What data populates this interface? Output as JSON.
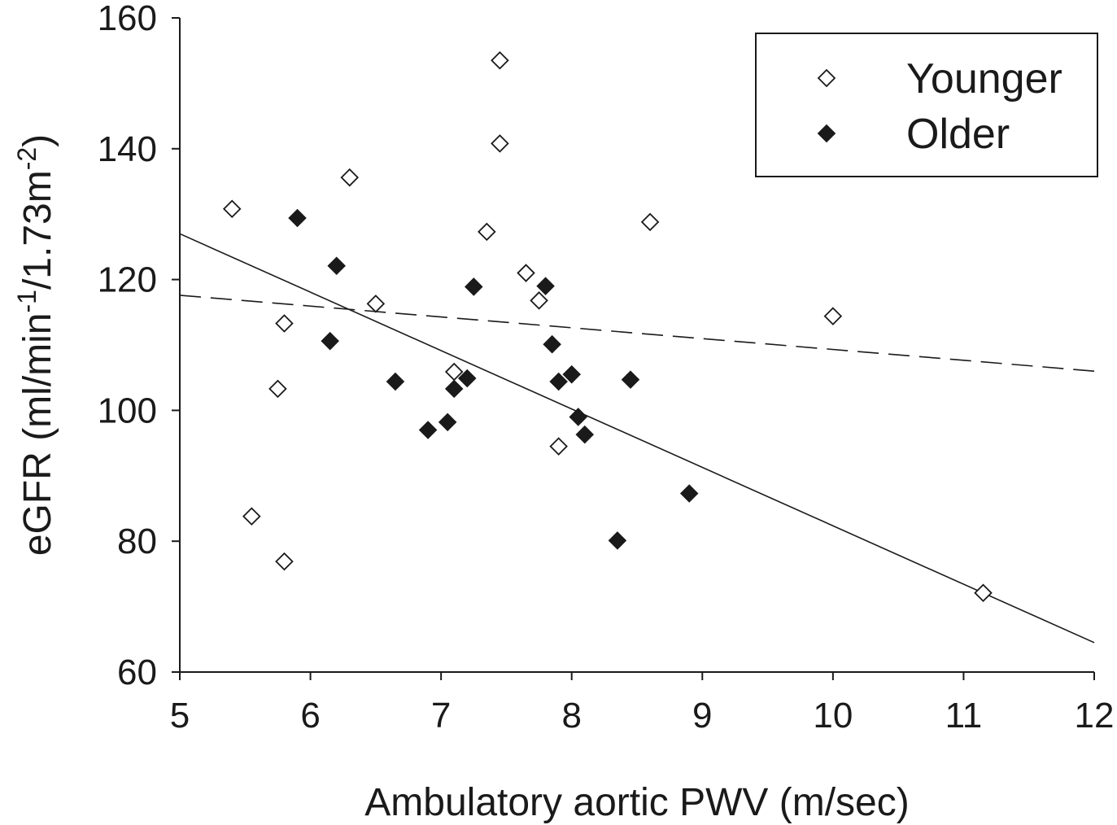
{
  "chart_data": {
    "type": "scatter",
    "title": "",
    "xlabel": "Ambulatory aortic PWV (m/sec)",
    "ylabel": {
      "prefix": "eGFR (ml/min",
      "sup1": "-1",
      "middle": "/1.73m",
      "sup2": "-2",
      "suffix": ")"
    },
    "xlim": [
      5,
      12
    ],
    "ylim": [
      60,
      160
    ],
    "xticks": [
      "5",
      "6",
      "7",
      "8",
      "9",
      "10",
      "11",
      "12"
    ],
    "yticks": [
      "60",
      "80",
      "100",
      "120",
      "140",
      "160"
    ],
    "grid": false,
    "legend_position": "top-right",
    "series": [
      {
        "name": "Younger",
        "marker": "open-diamond",
        "color": "#1a1a1a",
        "points": [
          {
            "x": 5.4,
            "y": 130.8
          },
          {
            "x": 5.55,
            "y": 83.8
          },
          {
            "x": 5.75,
            "y": 103.3
          },
          {
            "x": 5.8,
            "y": 113.3
          },
          {
            "x": 5.8,
            "y": 76.9
          },
          {
            "x": 6.3,
            "y": 135.6
          },
          {
            "x": 6.5,
            "y": 116.3
          },
          {
            "x": 7.1,
            "y": 105.9
          },
          {
            "x": 7.35,
            "y": 127.3
          },
          {
            "x": 7.45,
            "y": 153.5
          },
          {
            "x": 7.45,
            "y": 140.8
          },
          {
            "x": 7.65,
            "y": 121.0
          },
          {
            "x": 7.75,
            "y": 116.8
          },
          {
            "x": 7.9,
            "y": 94.5
          },
          {
            "x": 8.6,
            "y": 128.8
          },
          {
            "x": 10.0,
            "y": 114.4
          },
          {
            "x": 11.15,
            "y": 72.1
          }
        ]
      },
      {
        "name": "Older",
        "marker": "filled-diamond",
        "color": "#1a1a1a",
        "points": [
          {
            "x": 5.9,
            "y": 129.4
          },
          {
            "x": 6.15,
            "y": 110.6
          },
          {
            "x": 6.2,
            "y": 122.1
          },
          {
            "x": 6.65,
            "y": 104.4
          },
          {
            "x": 6.9,
            "y": 97.0
          },
          {
            "x": 7.05,
            "y": 98.2
          },
          {
            "x": 7.1,
            "y": 103.3
          },
          {
            "x": 7.2,
            "y": 104.9
          },
          {
            "x": 7.25,
            "y": 118.9
          },
          {
            "x": 7.8,
            "y": 119.0
          },
          {
            "x": 7.85,
            "y": 110.1
          },
          {
            "x": 7.9,
            "y": 104.4
          },
          {
            "x": 8.0,
            "y": 105.5
          },
          {
            "x": 8.05,
            "y": 99.0
          },
          {
            "x": 8.1,
            "y": 96.3
          },
          {
            "x": 8.35,
            "y": 80.1
          },
          {
            "x": 8.45,
            "y": 104.7
          },
          {
            "x": 8.9,
            "y": 87.3
          }
        ]
      }
    ],
    "trendlines": [
      {
        "style": "solid",
        "x": [
          5,
          12
        ],
        "y": [
          127.0,
          64.5
        ]
      },
      {
        "style": "dashed",
        "x": [
          5,
          12
        ],
        "y": [
          117.6,
          106.0
        ]
      }
    ]
  }
}
